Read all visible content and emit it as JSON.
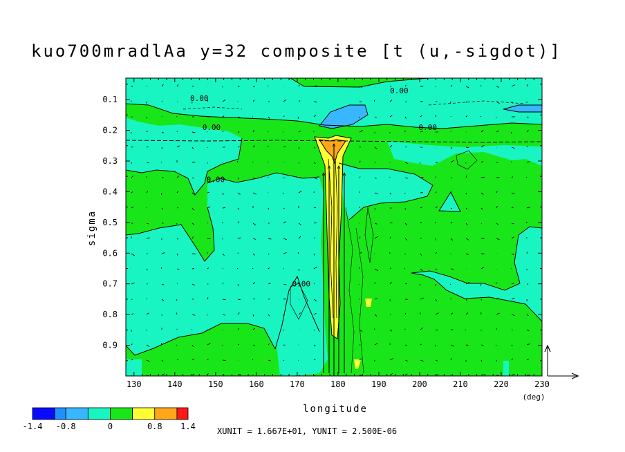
{
  "chart_data": {
    "type": "heatmap",
    "title": "kuo700mradlAa y=32 composite [t (u,-sigdot)]",
    "xlabel": "longitude",
    "ylabel": "sigma",
    "x_unit_label": "(deg)",
    "xlim": [
      128,
      230
    ],
    "ylim": [
      0.03,
      1.0
    ],
    "y_inverted": true,
    "x_ticks": [
      "130",
      "140",
      "150",
      "160",
      "170",
      "180",
      "190",
      "200",
      "210",
      "220",
      "230"
    ],
    "x_tick_values": [
      130,
      140,
      150,
      160,
      170,
      180,
      190,
      200,
      210,
      220,
      230
    ],
    "y_ticks": [
      "0.1",
      "0.2",
      "0.3",
      "0.4",
      "0.5",
      "0.6",
      "0.7",
      "0.8",
      "0.9"
    ],
    "y_tick_values": [
      0.1,
      0.2,
      0.3,
      0.4,
      0.5,
      0.6,
      0.7,
      0.8,
      0.9
    ],
    "contour_labels": [
      {
        "text": "0.00",
        "x": 146,
        "y": 0.095
      },
      {
        "text": "0.00",
        "x": 195,
        "y": 0.07
      },
      {
        "text": "0.00",
        "x": 149,
        "y": 0.19
      },
      {
        "text": "0.00",
        "x": 202,
        "y": 0.19
      },
      {
        "text": "0.00",
        "x": 150,
        "y": 0.36
      },
      {
        "text": "0.00",
        "x": 171,
        "y": 0.7
      }
    ],
    "colorbar": {
      "levels": [
        -1.4,
        -1.0,
        -0.8,
        -0.4,
        0.0,
        0.4,
        0.8,
        1.2,
        1.4
      ],
      "colors": [
        "#0a0aff",
        "#1e90ff",
        "#38b6ff",
        "#19f5c2",
        "#19e619",
        "#ffff33",
        "#ffa719",
        "#ff1919"
      ],
      "tick_labels": [
        {
          "text": "-1.4",
          "value": -1.4
        },
        {
          "text": "-0.8",
          "value": -0.8
        },
        {
          "text": "0",
          "value": 0.0
        },
        {
          "text": "0.8",
          "value": 0.8
        },
        {
          "text": "1.4",
          "value": 1.4
        }
      ]
    },
    "vector_reference": {
      "text": "XUNIT = 1.667E+01, YUNIT = 2.500E-06"
    },
    "grid": false
  }
}
